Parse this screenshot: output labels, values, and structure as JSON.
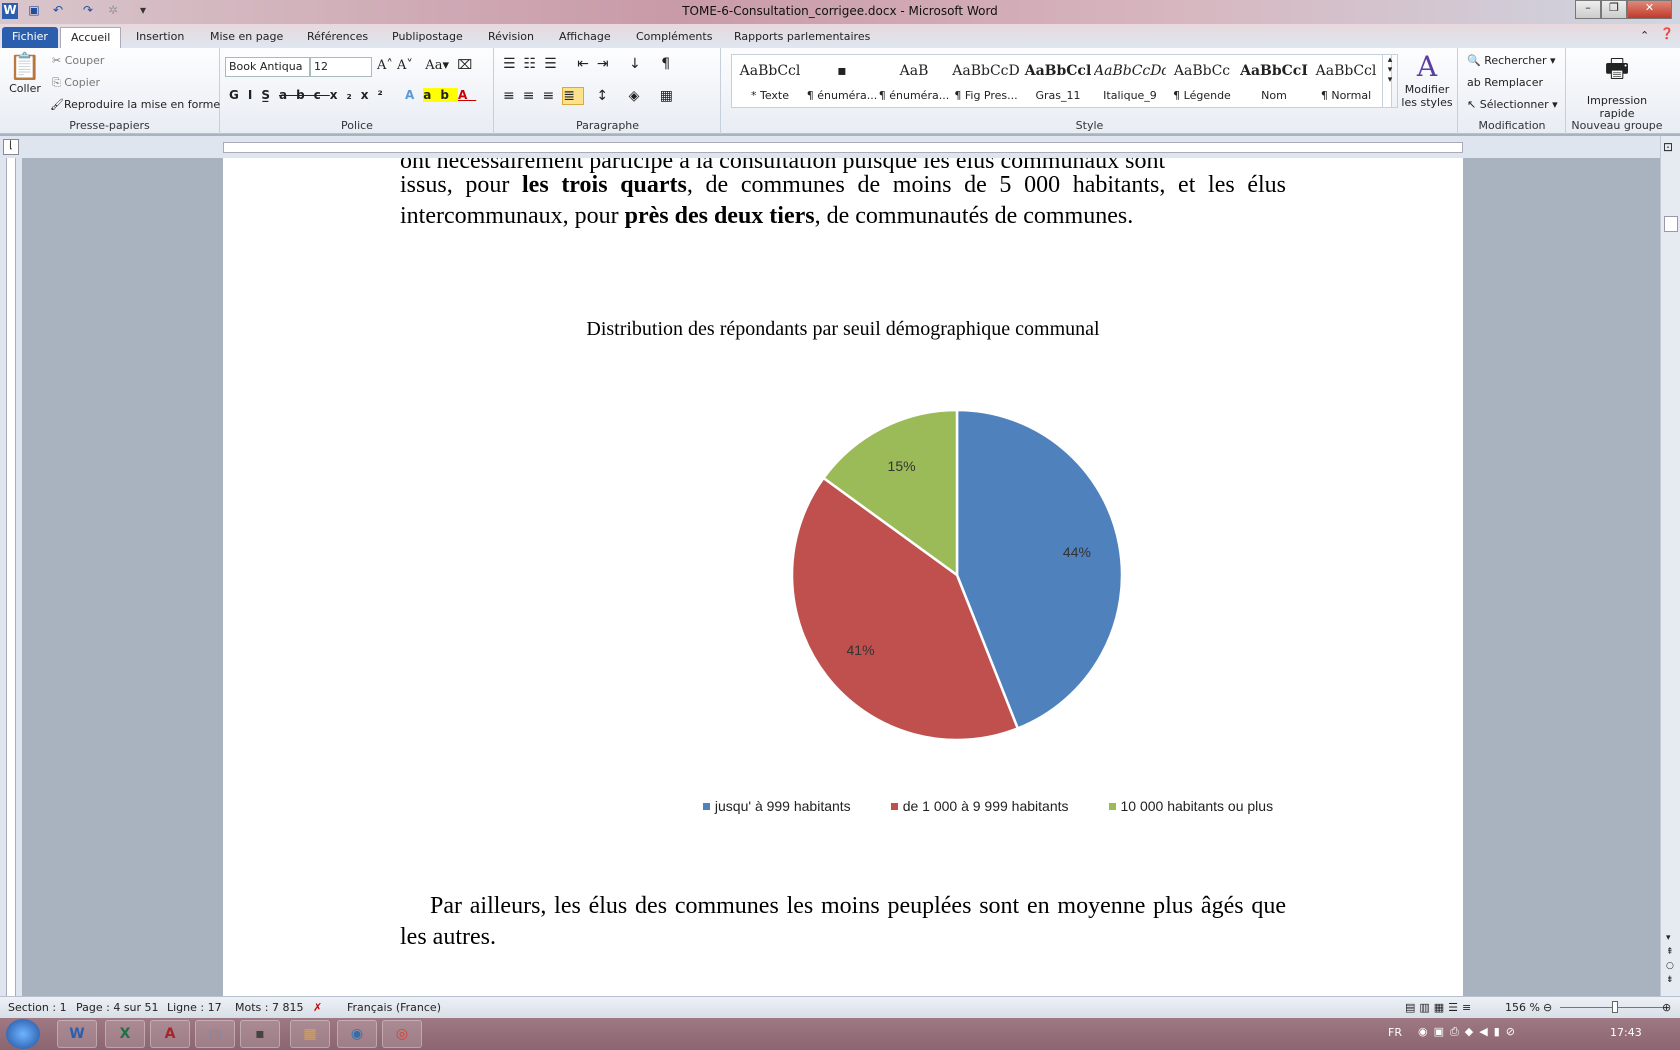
{
  "window": {
    "title": "TOME-6-Consultation_corrigee.docx - Microsoft Word"
  },
  "tabs": [
    "Fichier",
    "Accueil",
    "Insertion",
    "Mise en page",
    "Références",
    "Publipostage",
    "Révision",
    "Affichage",
    "Compléments",
    "Rapports parlementaires"
  ],
  "ribbon": {
    "clipboard": {
      "paste": "Coller",
      "cut": "Couper",
      "copy": "Copier",
      "format_painter": "Reproduire la mise en forme",
      "label": "Presse-papiers"
    },
    "font": {
      "name": "Book Antiqua",
      "size": "12",
      "label": "Police"
    },
    "paragraph": {
      "label": "Paragraphe"
    },
    "styles": {
      "items": [
        {
          "preview": "AaBbCcl",
          "name": "* Texte"
        },
        {
          "preview": "▪",
          "name": "¶ énuméra..."
        },
        {
          "preview": "AaB",
          "name": "¶ énuméra..."
        },
        {
          "preview": "AaBbCcD",
          "name": "¶ Fig Pres..."
        },
        {
          "preview": "AaBbCcl",
          "name": "Gras_11"
        },
        {
          "preview": "AaBbCcDdI",
          "name": "Italique_9"
        },
        {
          "preview": "AaBbCc",
          "name": "¶ Légende"
        },
        {
          "preview": "AaBbCcI",
          "name": "Nom"
        },
        {
          "preview": "AaBbCcl",
          "name": "¶ Normal"
        }
      ],
      "modify": "Modifier les styles",
      "label": "Style"
    },
    "editing": {
      "find": "Rechercher",
      "replace": "Remplacer",
      "select": "Sélectionner",
      "label": "Modification"
    },
    "quickprint": {
      "button": "Impression rapide",
      "label": "Nouveau groupe"
    }
  },
  "document": {
    "clipped_line": "ont nécessairement participé à la consultation puisque les élus communaux sont",
    "para1": [
      "issus, pour ",
      "les trois quarts",
      ", de communes de moins de 5 000 habitants, et les élus intercommunaux, pour ",
      "près des deux tiers",
      ", de communautés de communes."
    ],
    "para2": "Par ailleurs, les élus des communes les moins peuplées sont en moyenne plus âgés que les autres."
  },
  "chart_data": {
    "type": "pie",
    "title": "Distribution des répondants par seuil démographique communal",
    "categories": [
      "jusqu' à 999 habitants",
      "de 1 000 à 9 999 habitants",
      "10 000 habitants ou plus"
    ],
    "values": [
      44,
      41,
      15
    ],
    "labels": [
      "44%",
      "41%",
      "15%"
    ],
    "colors": [
      "#4f81bd",
      "#c0504d",
      "#9bbb59"
    ],
    "legend": "bottom"
  },
  "status": {
    "section": "Section : 1",
    "page": "Page : 4 sur 51",
    "line": "Ligne : 17",
    "words": "Mots : 7 815",
    "language": "Français (France)",
    "zoom": "156 %"
  },
  "taskbar": {
    "lang": "FR",
    "clock": "17:43",
    "apps": [
      "W",
      "X",
      "A",
      "▤",
      "▪",
      "▦",
      "◉",
      "◎"
    ]
  }
}
